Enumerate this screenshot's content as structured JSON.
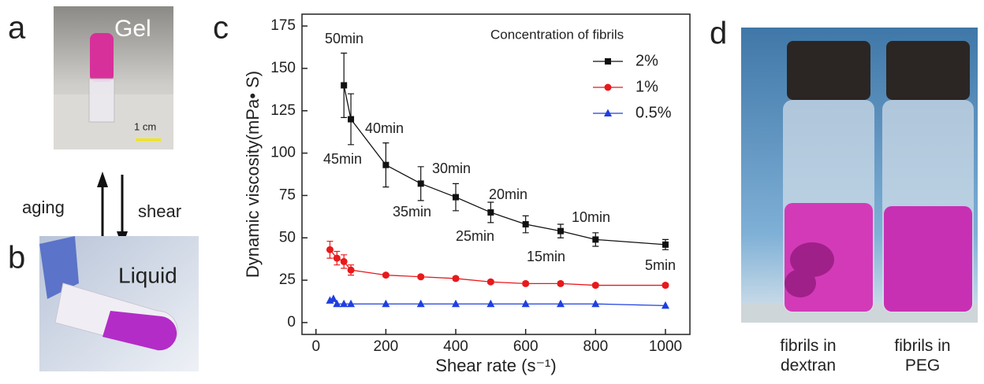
{
  "panel_labels": [
    "a",
    "b",
    "c",
    "d"
  ],
  "panel_a": {
    "label": "Gel",
    "scale": "1 cm"
  },
  "arrows": {
    "left": "aging",
    "right": "shear"
  },
  "panel_b": {
    "label": "Liquid"
  },
  "panel_d": {
    "captions": [
      "fibrils in\ndextran",
      "fibrils in\nPEG"
    ]
  },
  "chart_data": {
    "type": "scatter-line",
    "x_label": "Shear rate (s⁻¹)",
    "y_label": "Dynamic viscosity(mPa• S)",
    "legend_title": "Concentration of fibrils",
    "legend": "upper right",
    "xlim": [
      -40,
      1070
    ],
    "ylim": [
      -7,
      182
    ],
    "xticks": [
      0,
      200,
      400,
      600,
      800,
      1000
    ],
    "yticks": [
      0,
      25,
      50,
      75,
      100,
      125,
      150,
      175
    ],
    "series": [
      {
        "name": "2%",
        "color": "#111111",
        "marker": "square",
        "x": [
          80,
          100,
          200,
          300,
          400,
          500,
          600,
          700,
          800,
          1000
        ],
        "values": [
          140,
          120,
          93,
          82,
          74,
          65,
          58,
          54,
          49,
          46
        ],
        "errors": [
          19,
          15,
          13,
          10,
          8,
          6,
          5,
          4,
          4,
          3
        ]
      },
      {
        "name": "1%",
        "color": "#e8191b",
        "marker": "circle",
        "x": [
          40,
          60,
          80,
          100,
          200,
          300,
          400,
          500,
          600,
          700,
          800,
          1000
        ],
        "values": [
          43,
          38,
          36,
          31,
          28,
          27,
          26,
          24,
          23,
          23,
          22,
          22
        ],
        "errors": [
          5,
          4,
          4,
          3,
          1,
          1,
          1,
          1,
          1,
          1,
          1,
          1
        ]
      },
      {
        "name": "0.5%",
        "color": "#1f3fe0",
        "marker": "triangle",
        "x": [
          40,
          50,
          60,
          80,
          100,
          200,
          300,
          400,
          500,
          600,
          700,
          800,
          1000
        ],
        "values": [
          13,
          14,
          11,
          11,
          11,
          11,
          11,
          11,
          11,
          11,
          11,
          11,
          10
        ]
      }
    ],
    "annotations": [
      "50min",
      "45min",
      "40min",
      "35min",
      "30min",
      "25min",
      "20min",
      "15min",
      "10min",
      "5min"
    ]
  }
}
